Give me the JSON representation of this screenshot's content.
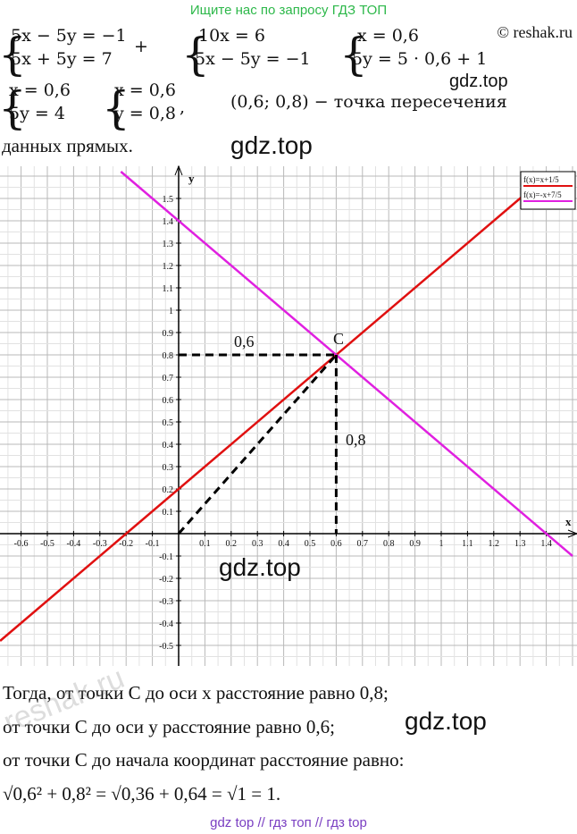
{
  "header": {
    "search_hint": "Ищите нас по запросу ГДЗ ТОП",
    "copyright": "© reshak.ru"
  },
  "systems": [
    [
      "5x − 5y = −1",
      "5x + 5y = 7"
    ],
    [
      "10x = 6",
      "5x − 5y = −1"
    ],
    [
      "x = 0,6",
      "5y = 5 · 0,6 + 1"
    ],
    [
      "x = 0,6",
      "5y = 4"
    ],
    [
      "x = 0,6",
      "y = 0,8"
    ]
  ],
  "plus": "+",
  "comma": ",",
  "intersection": "(0,6; 0,8) − точка пересечения",
  "intersection_end": "данных прямых.",
  "graph": {
    "x_axis_label": "x",
    "y_axis_label": "y",
    "x_tick_labels": [
      "-0.6",
      "-0.5",
      "-0.4",
      "-0.3",
      "-0.2",
      "-0.1",
      "0.1",
      "0.2",
      "0.3",
      "0.4",
      "0.5",
      "0.6",
      "0.7",
      "0.8",
      "0.9",
      "1",
      "1.1",
      "1.2",
      "1.3",
      "1.4"
    ],
    "y_tick_labels": [
      "1.5",
      "1.4",
      "1.3",
      "1.2",
      "1.1",
      "1",
      "0.9",
      "0.8",
      "0.7",
      "0.6",
      "0.5",
      "0.4",
      "0.3",
      "0.2",
      "0.1",
      "-0.1",
      "-0.2",
      "-0.3",
      "-0.4",
      "-0.5"
    ],
    "legend": [
      "f(x)=x+1/5",
      "f(x)=-x+7/5"
    ],
    "point_label": "C",
    "horizontal_label": "0,6",
    "vertical_label": "0,8"
  },
  "conclusion": [
    "Тогда, от точки C до оси x расстояние равно 0,8;",
    "от точки C до оси y расстояние равно 0,6;",
    "от точки C до начала координат расстояние равно:",
    "√0,6² + 0,8² = √0,36 + 0,64 = √1 = 1."
  ],
  "watermarks": [
    "gdz.top",
    "gdz.top",
    "gdz.top",
    "gdz.top",
    "reshak.ru"
  ],
  "footer": "gdz top  //  гдз топ  //  гдз top"
}
